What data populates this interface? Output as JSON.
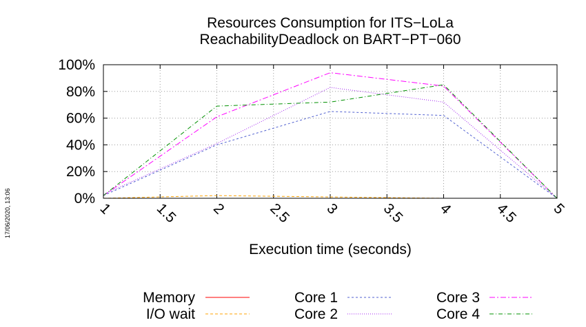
{
  "timestamp": "17/06/2020, 13:06",
  "chart_data": {
    "type": "line",
    "title": [
      "Resources Consumption for ITS−LoLa",
      "ReachabilityDeadlock on BART−PT−060"
    ],
    "xlabel": "Execution time (seconds)",
    "ylabel": "",
    "xlim": [
      1,
      5
    ],
    "ylim": [
      0,
      100
    ],
    "x_ticks": [
      "1",
      "1.5",
      "2",
      "2.5",
      "3",
      "3.5",
      "4",
      "4.5",
      "5"
    ],
    "y_ticks": [
      "0%",
      "20%",
      "40%",
      "60%",
      "80%",
      "100%"
    ],
    "grid": true,
    "legend_position": "bottom",
    "x": [
      1,
      2,
      3,
      4,
      5
    ],
    "series": [
      {
        "name": "Memory",
        "color": "#ff0000",
        "dash": "",
        "values": [
          0,
          0,
          0,
          0,
          0
        ]
      },
      {
        "name": "I/O wait",
        "color": "#ffa000",
        "dash": "4,3",
        "values": [
          0,
          2,
          1,
          0,
          0
        ]
      },
      {
        "name": "Core 1",
        "color": "#5060d0",
        "dash": "3,3",
        "values": [
          2,
          40,
          65,
          62,
          0
        ]
      },
      {
        "name": "Core 2",
        "color": "#a020f0",
        "dash": "1,2",
        "values": [
          3,
          41,
          83,
          72,
          0
        ]
      },
      {
        "name": "Core 3",
        "color": "#ff00ff",
        "dash": "8,3,2,3",
        "values": [
          2,
          61,
          94,
          84,
          0
        ]
      },
      {
        "name": "Core 4",
        "color": "#009000",
        "dash": "6,3,1,3",
        "values": [
          2,
          69,
          72,
          85,
          0
        ]
      }
    ]
  }
}
